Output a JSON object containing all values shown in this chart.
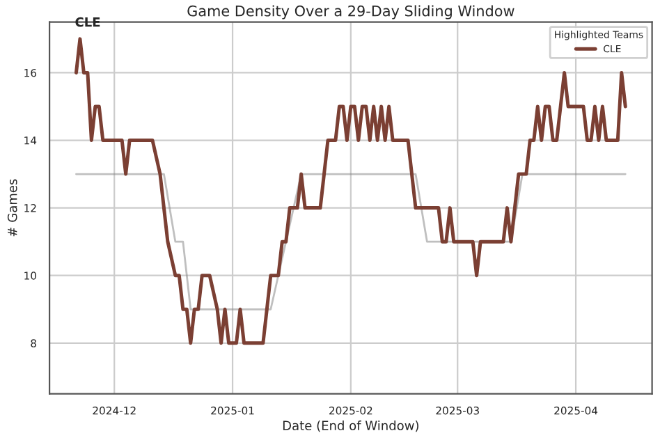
{
  "chart_data": {
    "type": "line",
    "title": "Game Density Over a 29-Day Sliding Window",
    "xlabel": "Date (End of Window)",
    "ylabel": "# Games",
    "legend_title": "Highlighted Teams",
    "legend": "top right",
    "grid": true,
    "marker": "none",
    "line_style": "solid",
    "xlim": [
      "2024-11-14",
      "2025-04-21"
    ],
    "xticks": [
      {
        "value": "2024-12-01",
        "label": "2024-12"
      },
      {
        "value": "2025-01-01",
        "label": "2025-01"
      },
      {
        "value": "2025-02-01",
        "label": "2025-02"
      },
      {
        "value": "2025-03-01",
        "label": "2025-03"
      },
      {
        "value": "2025-04-01",
        "label": "2025-04"
      }
    ],
    "ylim": [
      6.5,
      17.5
    ],
    "yticks": [
      8,
      10,
      12,
      14,
      16
    ],
    "annotations": [
      {
        "text": "CLE",
        "x": "2024-11-22",
        "y": 17
      }
    ],
    "series": [
      {
        "color": "#7f7f7f",
        "x": [
          "2024-11-21",
          "2024-12-14",
          "2024-12-17",
          "2024-12-19",
          "2024-12-21",
          "2025-01-11",
          "2025-01-13",
          "2025-01-15",
          "2025-01-19",
          "2025-02-18",
          "2025-02-21",
          "2025-03-15",
          "2025-03-18",
          "2025-04-14"
        ],
        "values": [
          13,
          13,
          11,
          11,
          9,
          9,
          10,
          11,
          13,
          13,
          11,
          11,
          13,
          13
        ]
      },
      {
        "name": "CLE",
        "color": "#7b3f33",
        "x": [
          "2024-11-21",
          "2024-11-22",
          "2024-11-23",
          "2024-11-24",
          "2024-11-25",
          "2024-11-26",
          "2024-11-27",
          "2024-11-28",
          "2024-12-03",
          "2024-12-04",
          "2024-12-05",
          "2024-12-11",
          "2024-12-13",
          "2024-12-14",
          "2024-12-15",
          "2024-12-17",
          "2024-12-18",
          "2024-12-19",
          "2024-12-20",
          "2024-12-21",
          "2024-12-22",
          "2024-12-23",
          "2024-12-24",
          "2024-12-26",
          "2024-12-28",
          "2024-12-29",
          "2024-12-30",
          "2024-12-31",
          "2025-01-02",
          "2025-01-03",
          "2025-01-04",
          "2025-01-09",
          "2025-01-10",
          "2025-01-11",
          "2025-01-13",
          "2025-01-14",
          "2025-01-15",
          "2025-01-16",
          "2025-01-18",
          "2025-01-19",
          "2025-01-20",
          "2025-01-24",
          "2025-01-25",
          "2025-01-26",
          "2025-01-28",
          "2025-01-29",
          "2025-01-30",
          "2025-01-31",
          "2025-02-01",
          "2025-02-02",
          "2025-02-03",
          "2025-02-04",
          "2025-02-05",
          "2025-02-06",
          "2025-02-07",
          "2025-02-08",
          "2025-02-09",
          "2025-02-10",
          "2025-02-11",
          "2025-02-12",
          "2025-02-16",
          "2025-02-17",
          "2025-02-18",
          "2025-02-24",
          "2025-02-25",
          "2025-02-26",
          "2025-02-27",
          "2025-02-28",
          "2025-03-05",
          "2025-03-06",
          "2025-03-07",
          "2025-03-13",
          "2025-03-14",
          "2025-03-15",
          "2025-03-16",
          "2025-03-17",
          "2025-03-19",
          "2025-03-20",
          "2025-03-21",
          "2025-03-22",
          "2025-03-23",
          "2025-03-24",
          "2025-03-25",
          "2025-03-26",
          "2025-03-27",
          "2025-03-28",
          "2025-03-29",
          "2025-03-30",
          "2025-04-03",
          "2025-04-04",
          "2025-04-05",
          "2025-04-06",
          "2025-04-07",
          "2025-04-08",
          "2025-04-09",
          "2025-04-12",
          "2025-04-13",
          "2025-04-14"
        ],
        "values": [
          16,
          17,
          16,
          16,
          14,
          15,
          15,
          14,
          14,
          13,
          14,
          14,
          13,
          12,
          11,
          10,
          10,
          9,
          9,
          8,
          9,
          9,
          10,
          10,
          9,
          8,
          9,
          8,
          8,
          9,
          8,
          8,
          9,
          10,
          10,
          11,
          11,
          12,
          12,
          13,
          12,
          12,
          13,
          14,
          14,
          15,
          15,
          14,
          15,
          15,
          14,
          15,
          15,
          14,
          15,
          14,
          15,
          14,
          15,
          14,
          14,
          13,
          12,
          12,
          11,
          11,
          12,
          11,
          11,
          10,
          11,
          11,
          12,
          11,
          12,
          13,
          13,
          14,
          14,
          15,
          14,
          15,
          15,
          14,
          14,
          15,
          16,
          15,
          15,
          14,
          14,
          15,
          14,
          15,
          14,
          14,
          16,
          15
        ]
      }
    ]
  }
}
